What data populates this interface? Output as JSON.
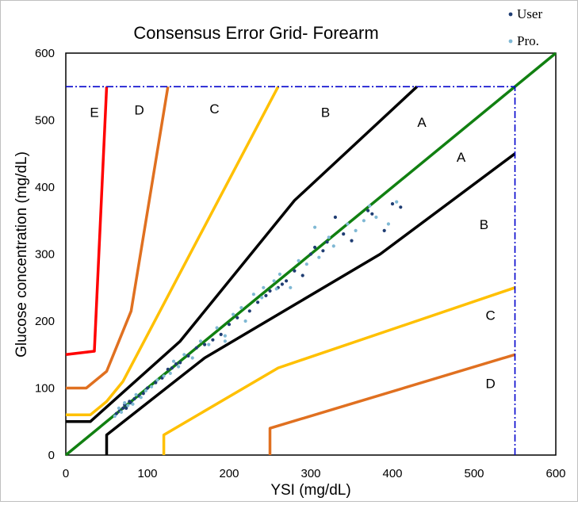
{
  "chart_data": {
    "type": "scatter",
    "title": "Consensus Error Grid- Forearm",
    "xlabel": "YSI (mg/dL)",
    "ylabel": "Glucose concentration (mg/dL)",
    "xlim": [
      0,
      600
    ],
    "ylim": [
      0,
      600
    ],
    "x_ticks": [
      0,
      100,
      200,
      300,
      400,
      500,
      600
    ],
    "y_ticks": [
      0,
      100,
      200,
      300,
      400,
      500,
      600
    ],
    "grid": false,
    "legend_position": "top-right",
    "colors": {
      "user": "#1f3d73",
      "pro": "#7fb8d4",
      "identity": "#118011",
      "zone_a_b": "#000000",
      "zone_b_c": "#ffc000",
      "zone_c_d": "#e07020",
      "zone_d_e": "#ff0000",
      "limit": "#0000cc"
    },
    "series": [
      {
        "name": "User",
        "color": "#1f3d73",
        "points": [
          [
            62,
            62
          ],
          [
            66,
            66
          ],
          [
            70,
            70
          ],
          [
            72,
            75
          ],
          [
            74,
            70
          ],
          [
            78,
            80
          ],
          [
            80,
            78
          ],
          [
            84,
            84
          ],
          [
            90,
            88
          ],
          [
            95,
            92
          ],
          [
            100,
            100
          ],
          [
            110,
            108
          ],
          [
            118,
            115
          ],
          [
            125,
            128
          ],
          [
            130,
            130
          ],
          [
            135,
            136
          ],
          [
            140,
            138
          ],
          [
            150,
            148
          ],
          [
            160,
            160
          ],
          [
            170,
            165
          ],
          [
            180,
            172
          ],
          [
            190,
            180
          ],
          [
            200,
            195
          ],
          [
            210,
            205
          ],
          [
            225,
            215
          ],
          [
            235,
            228
          ],
          [
            250,
            245
          ],
          [
            260,
            250
          ],
          [
            270,
            260
          ],
          [
            280,
            275
          ],
          [
            290,
            268
          ],
          [
            300,
            300
          ],
          [
            305,
            310
          ],
          [
            315,
            305
          ],
          [
            320,
            318
          ],
          [
            330,
            355
          ],
          [
            340,
            330
          ],
          [
            350,
            320
          ],
          [
            370,
            365
          ],
          [
            375,
            360
          ],
          [
            390,
            335
          ],
          [
            400,
            375
          ],
          [
            410,
            370
          ],
          [
            265,
            255
          ],
          [
            245,
            238
          ]
        ]
      },
      {
        "name": "Pro.",
        "color": "#7fb8d4",
        "points": [
          [
            60,
            58
          ],
          [
            65,
            70
          ],
          [
            68,
            64
          ],
          [
            72,
            78
          ],
          [
            76,
            74
          ],
          [
            82,
            76
          ],
          [
            86,
            90
          ],
          [
            92,
            86
          ],
          [
            98,
            96
          ],
          [
            105,
            102
          ],
          [
            112,
            112
          ],
          [
            120,
            118
          ],
          [
            128,
            122
          ],
          [
            132,
            140
          ],
          [
            138,
            132
          ],
          [
            145,
            150
          ],
          [
            155,
            145
          ],
          [
            165,
            170
          ],
          [
            175,
            165
          ],
          [
            185,
            190
          ],
          [
            195,
            178
          ],
          [
            205,
            210
          ],
          [
            215,
            220
          ],
          [
            220,
            200
          ],
          [
            230,
            240
          ],
          [
            240,
            235
          ],
          [
            255,
            260
          ],
          [
            262,
            270
          ],
          [
            275,
            250
          ],
          [
            285,
            290
          ],
          [
            295,
            285
          ],
          [
            305,
            340
          ],
          [
            310,
            295
          ],
          [
            322,
            325
          ],
          [
            328,
            312
          ],
          [
            345,
            345
          ],
          [
            355,
            335
          ],
          [
            365,
            350
          ],
          [
            372,
            372
          ],
          [
            380,
            355
          ],
          [
            395,
            345
          ],
          [
            405,
            378
          ],
          [
            258,
            248
          ],
          [
            242,
            250
          ],
          [
            195,
            170
          ]
        ]
      }
    ],
    "zone_labels": [
      {
        "text": "E",
        "x": 35,
        "y": 505
      },
      {
        "text": "D",
        "x": 90,
        "y": 508
      },
      {
        "text": "C",
        "x": 182,
        "y": 510
      },
      {
        "text": "B",
        "x": 318,
        "y": 505
      },
      {
        "text": "A",
        "x": 436,
        "y": 490
      },
      {
        "text": "A",
        "x": 484,
        "y": 438
      },
      {
        "text": "B",
        "x": 512,
        "y": 337
      },
      {
        "text": "C",
        "x": 520,
        "y": 202
      },
      {
        "text": "D",
        "x": 520,
        "y": 100
      }
    ],
    "zone_boundaries": [
      {
        "zone": "A-B upper",
        "color": "#000000",
        "points": [
          [
            0,
            50
          ],
          [
            30,
            50
          ],
          [
            140,
            170
          ],
          [
            280,
            380
          ],
          [
            430,
            550
          ]
        ]
      },
      {
        "zone": "A-B lower",
        "color": "#000000",
        "points": [
          [
            50,
            0
          ],
          [
            50,
            30
          ],
          [
            170,
            145
          ],
          [
            385,
            300
          ],
          [
            550,
            450
          ]
        ]
      },
      {
        "zone": "B-C upper",
        "color": "#ffc000",
        "points": [
          [
            0,
            60
          ],
          [
            30,
            60
          ],
          [
            50,
            80
          ],
          [
            70,
            110
          ],
          [
            260,
            550
          ]
        ]
      },
      {
        "zone": "B-C lower",
        "color": "#ffc000",
        "points": [
          [
            120,
            0
          ],
          [
            120,
            30
          ],
          [
            260,
            130
          ],
          [
            550,
            250
          ]
        ]
      },
      {
        "zone": "C-D upper",
        "color": "#e07020",
        "points": [
          [
            0,
            100
          ],
          [
            25,
            100
          ],
          [
            50,
            125
          ],
          [
            80,
            215
          ],
          [
            125,
            550
          ]
        ]
      },
      {
        "zone": "C-D lower",
        "color": "#e07020",
        "points": [
          [
            250,
            0
          ],
          [
            250,
            40
          ],
          [
            550,
            150
          ]
        ]
      },
      {
        "zone": "D-E upper",
        "color": "#ff0000",
        "points": [
          [
            0,
            150
          ],
          [
            35,
            155
          ],
          [
            50,
            550
          ]
        ]
      },
      {
        "zone": "identity",
        "color": "#118011",
        "points": [
          [
            0,
            0
          ],
          [
            600,
            600
          ]
        ]
      }
    ],
    "limit_lines": [
      {
        "points": [
          [
            0,
            550
          ],
          [
            550,
            550
          ]
        ]
      },
      {
        "points": [
          [
            550,
            0
          ],
          [
            550,
            550
          ]
        ]
      }
    ]
  }
}
